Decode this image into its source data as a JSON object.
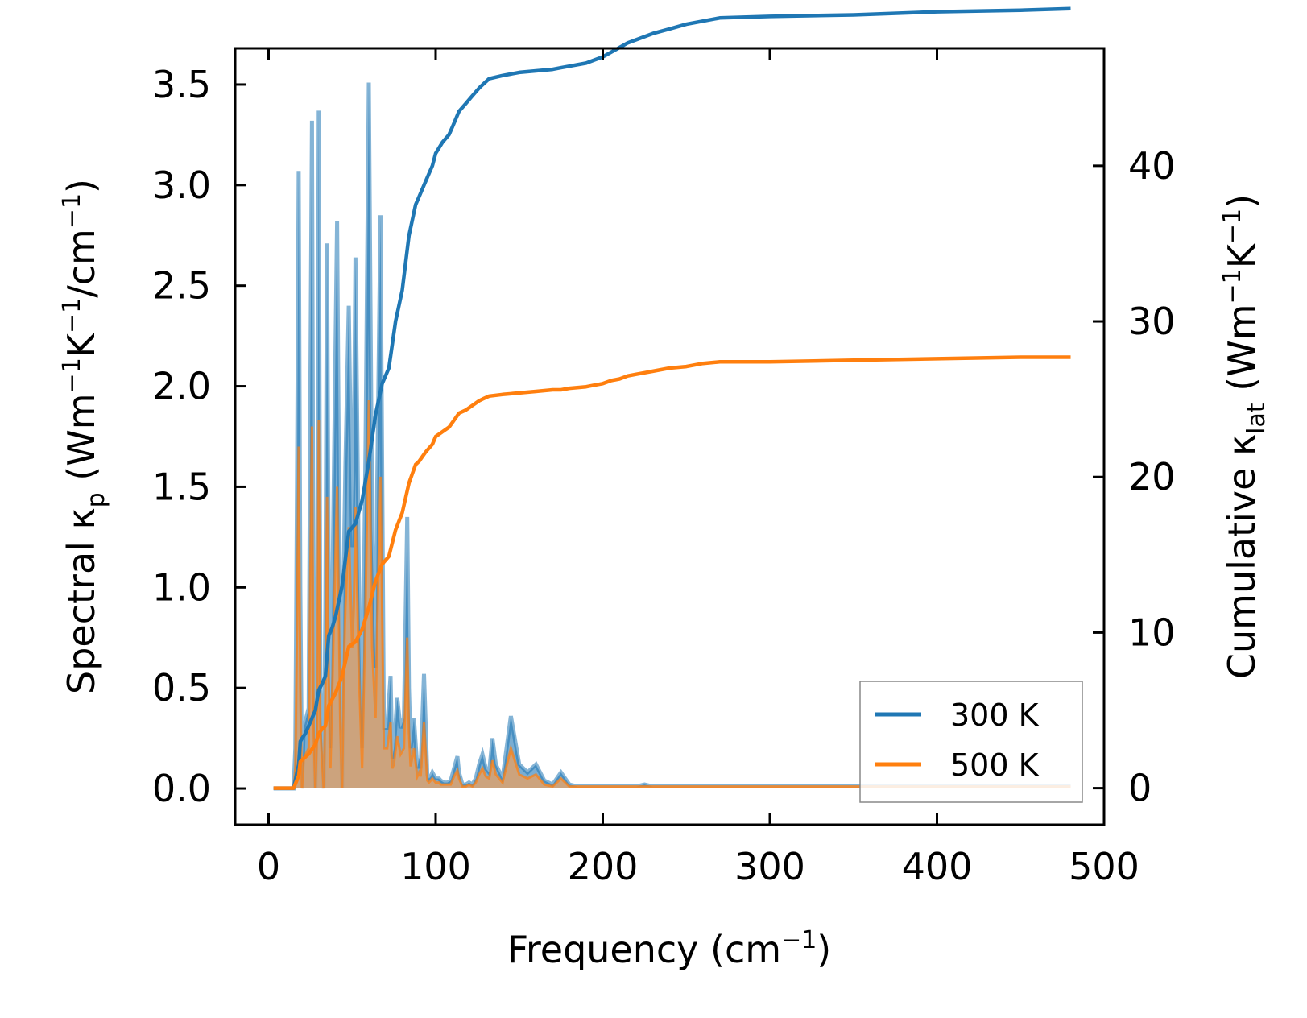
{
  "chart_data": {
    "type": "line",
    "xlabel": "Frequency (cm",
    "xlabel_sup": "−1",
    "xlabel_close": ")",
    "ylabel_left": {
      "prefix": "Spectral κ",
      "sub": "p",
      "unit_a": " (Wm",
      "sup_a": "−1",
      "unit_b": "K",
      "sup_b": "−1",
      "unit_c": "/cm",
      "sup_c": "−1",
      "close": ")"
    },
    "ylabel_right": {
      "prefix": "Cumulative κ",
      "sub": "lat",
      "unit_a": " (Wm",
      "sup_a": "−1",
      "unit_b": "K",
      "sup_b": "−1",
      "close": ")"
    },
    "xlim": [
      -20,
      500
    ],
    "ylim_left": [
      -0.18,
      3.68
    ],
    "ylim_right": [
      -2.35,
      47.55
    ],
    "x_ticks": [
      0,
      100,
      200,
      300,
      400,
      500
    ],
    "y_left_ticks": [
      "0.0",
      "0.5",
      "1.0",
      "1.5",
      "2.0",
      "2.5",
      "3.0",
      "3.5"
    ],
    "y_right_ticks": [
      "0",
      "10",
      "20",
      "30",
      "40"
    ],
    "legend_position": "lower-right",
    "colors": {
      "s300": "#1f77b4",
      "s500": "#ff7f0e",
      "fill300": "#1f77b4",
      "fill500": "#e8a060"
    },
    "spectral": {
      "x": [
        3,
        10,
        13,
        15,
        16,
        17,
        18,
        19,
        20,
        21,
        24,
        25,
        26,
        27,
        28,
        29,
        30,
        31,
        33,
        34,
        35,
        36,
        37,
        39,
        41,
        43,
        44,
        45,
        46,
        48,
        50,
        51,
        52,
        54,
        56,
        58,
        60,
        62,
        64,
        65,
        67,
        69,
        71,
        73,
        74,
        75,
        77,
        79,
        81,
        83,
        84,
        85,
        87,
        89,
        90,
        91,
        93,
        95,
        96,
        97,
        98,
        100,
        102,
        103,
        105,
        107,
        109,
        111,
        113,
        114,
        116,
        118,
        120,
        122,
        124,
        126,
        128,
        130,
        132,
        134,
        136,
        140,
        145,
        150,
        155,
        160,
        165,
        170,
        175,
        180,
        185,
        190,
        195,
        200,
        205,
        210,
        215,
        220,
        225,
        230,
        235,
        240,
        245,
        250,
        255,
        260,
        265,
        270,
        280,
        300,
        350,
        400,
        450,
        480
      ],
      "s300": [
        0,
        0,
        0,
        0,
        0.2,
        1.5,
        3.07,
        1.0,
        0.0,
        0.3,
        0.4,
        2.0,
        3.32,
        0.5,
        0.0,
        0.5,
        3.37,
        0.5,
        0.0,
        0.9,
        2.71,
        1.0,
        0.2,
        1.5,
        2.82,
        0.5,
        0.0,
        1.1,
        1.6,
        2.4,
        1.2,
        1.6,
        2.64,
        1.1,
        0.2,
        1.7,
        3.51,
        1.3,
        0.6,
        1.5,
        2.85,
        0.3,
        0.3,
        0.56,
        0.15,
        0.2,
        0.45,
        0.3,
        0.35,
        1.35,
        0.5,
        0.2,
        0.35,
        0.1,
        0.15,
        0.1,
        0.57,
        0.07,
        0.05,
        0.06,
        0.08,
        0.05,
        0.05,
        0.04,
        0.03,
        0.03,
        0.04,
        0.1,
        0.16,
        0.08,
        0.02,
        0.02,
        0.03,
        0.02,
        0.05,
        0.12,
        0.17,
        0.1,
        0.08,
        0.25,
        0.12,
        0.05,
        0.36,
        0.12,
        0.08,
        0.12,
        0.04,
        0.02,
        0.08,
        0.02,
        0.01,
        0.01,
        0.01,
        0.01,
        0.01,
        0.01,
        0.01,
        0.01,
        0.02,
        0.01,
        0.01,
        0.01,
        0.01,
        0.01,
        0.01,
        0.01,
        0.01,
        0.01,
        0.01,
        0.01,
        0.01,
        0.01,
        0.01,
        0.01
      ],
      "s500": [
        0,
        0,
        0,
        0,
        0.1,
        0.8,
        1.7,
        0.5,
        0.0,
        0.15,
        0.2,
        1.1,
        1.8,
        0.3,
        0.0,
        0.3,
        1.83,
        0.3,
        0.0,
        0.5,
        1.45,
        0.55,
        0.1,
        0.8,
        1.5,
        0.3,
        0.0,
        0.6,
        0.9,
        1.3,
        0.7,
        0.9,
        1.4,
        0.6,
        0.1,
        0.9,
        1.93,
        0.7,
        0.35,
        0.8,
        1.55,
        0.2,
        0.2,
        0.33,
        0.1,
        0.12,
        0.26,
        0.17,
        0.2,
        0.75,
        0.28,
        0.11,
        0.2,
        0.06,
        0.08,
        0.06,
        0.33,
        0.04,
        0.03,
        0.04,
        0.05,
        0.03,
        0.03,
        0.02,
        0.02,
        0.02,
        0.02,
        0.06,
        0.09,
        0.05,
        0.01,
        0.01,
        0.02,
        0.01,
        0.03,
        0.07,
        0.1,
        0.06,
        0.05,
        0.14,
        0.07,
        0.03,
        0.2,
        0.07,
        0.05,
        0.07,
        0.02,
        0.01,
        0.05,
        0.01,
        0.01,
        0.01,
        0.01,
        0.01,
        0.01,
        0.01,
        0.01,
        0.01,
        0.01,
        0.01,
        0.01,
        0.01,
        0.01,
        0.01,
        0.01,
        0.01,
        0.01,
        0.01,
        0.01,
        0.01,
        0.01,
        0.01,
        0.01,
        0.01
      ]
    },
    "cumulative": {
      "x": [
        3,
        15,
        18,
        19,
        20,
        22,
        24,
        26,
        28,
        30,
        32,
        34,
        36,
        38,
        40,
        44,
        48,
        52,
        56,
        60,
        64,
        68,
        72,
        76,
        80,
        84,
        88,
        90,
        94,
        98,
        100,
        104,
        108,
        110,
        114,
        118,
        122,
        126,
        128,
        132,
        140,
        150,
        160,
        170,
        175,
        180,
        190,
        195,
        200,
        205,
        210,
        215,
        220,
        225,
        230,
        240,
        250,
        260,
        270,
        300,
        350,
        400,
        450,
        480
      ],
      "c300": [
        0,
        0,
        1.5,
        3.0,
        3.2,
        3.5,
        4.0,
        4.5,
        5.0,
        6.3,
        6.7,
        7.2,
        9.8,
        10.3,
        11.0,
        13.0,
        16.5,
        17.0,
        18.5,
        21.0,
        24.0,
        26.0,
        27.0,
        30.0,
        32.0,
        35.5,
        37.5,
        38.0,
        39.0,
        40.0,
        40.8,
        41.5,
        42.0,
        42.5,
        43.5,
        44.0,
        44.5,
        45.0,
        45.2,
        45.6,
        45.8,
        46.0,
        46.1,
        46.2,
        46.3,
        46.4,
        46.6,
        46.8,
        47.0,
        47.3,
        47.6,
        47.9,
        48.1,
        48.3,
        48.5,
        48.8,
        49.1,
        49.3,
        49.5,
        49.6,
        49.7,
        49.9,
        50.0,
        50.1
      ],
      "c500": [
        0,
        0,
        0.8,
        1.7,
        1.8,
        2.0,
        2.2,
        2.5,
        2.8,
        3.5,
        3.8,
        4.0,
        5.3,
        5.7,
        6.1,
        7.2,
        9.1,
        9.4,
        10.2,
        11.6,
        13.3,
        14.4,
        14.9,
        16.6,
        17.7,
        19.6,
        20.8,
        21.0,
        21.6,
        22.1,
        22.6,
        22.9,
        23.2,
        23.5,
        24.1,
        24.3,
        24.6,
        24.9,
        25.0,
        25.2,
        25.3,
        25.4,
        25.5,
        25.6,
        25.6,
        25.7,
        25.8,
        25.9,
        26.0,
        26.2,
        26.3,
        26.5,
        26.6,
        26.7,
        26.8,
        27.0,
        27.1,
        27.3,
        27.4,
        27.4,
        27.5,
        27.6,
        27.7,
        27.7
      ]
    },
    "series": [
      {
        "name": "300 K"
      },
      {
        "name": "500 K"
      }
    ]
  }
}
